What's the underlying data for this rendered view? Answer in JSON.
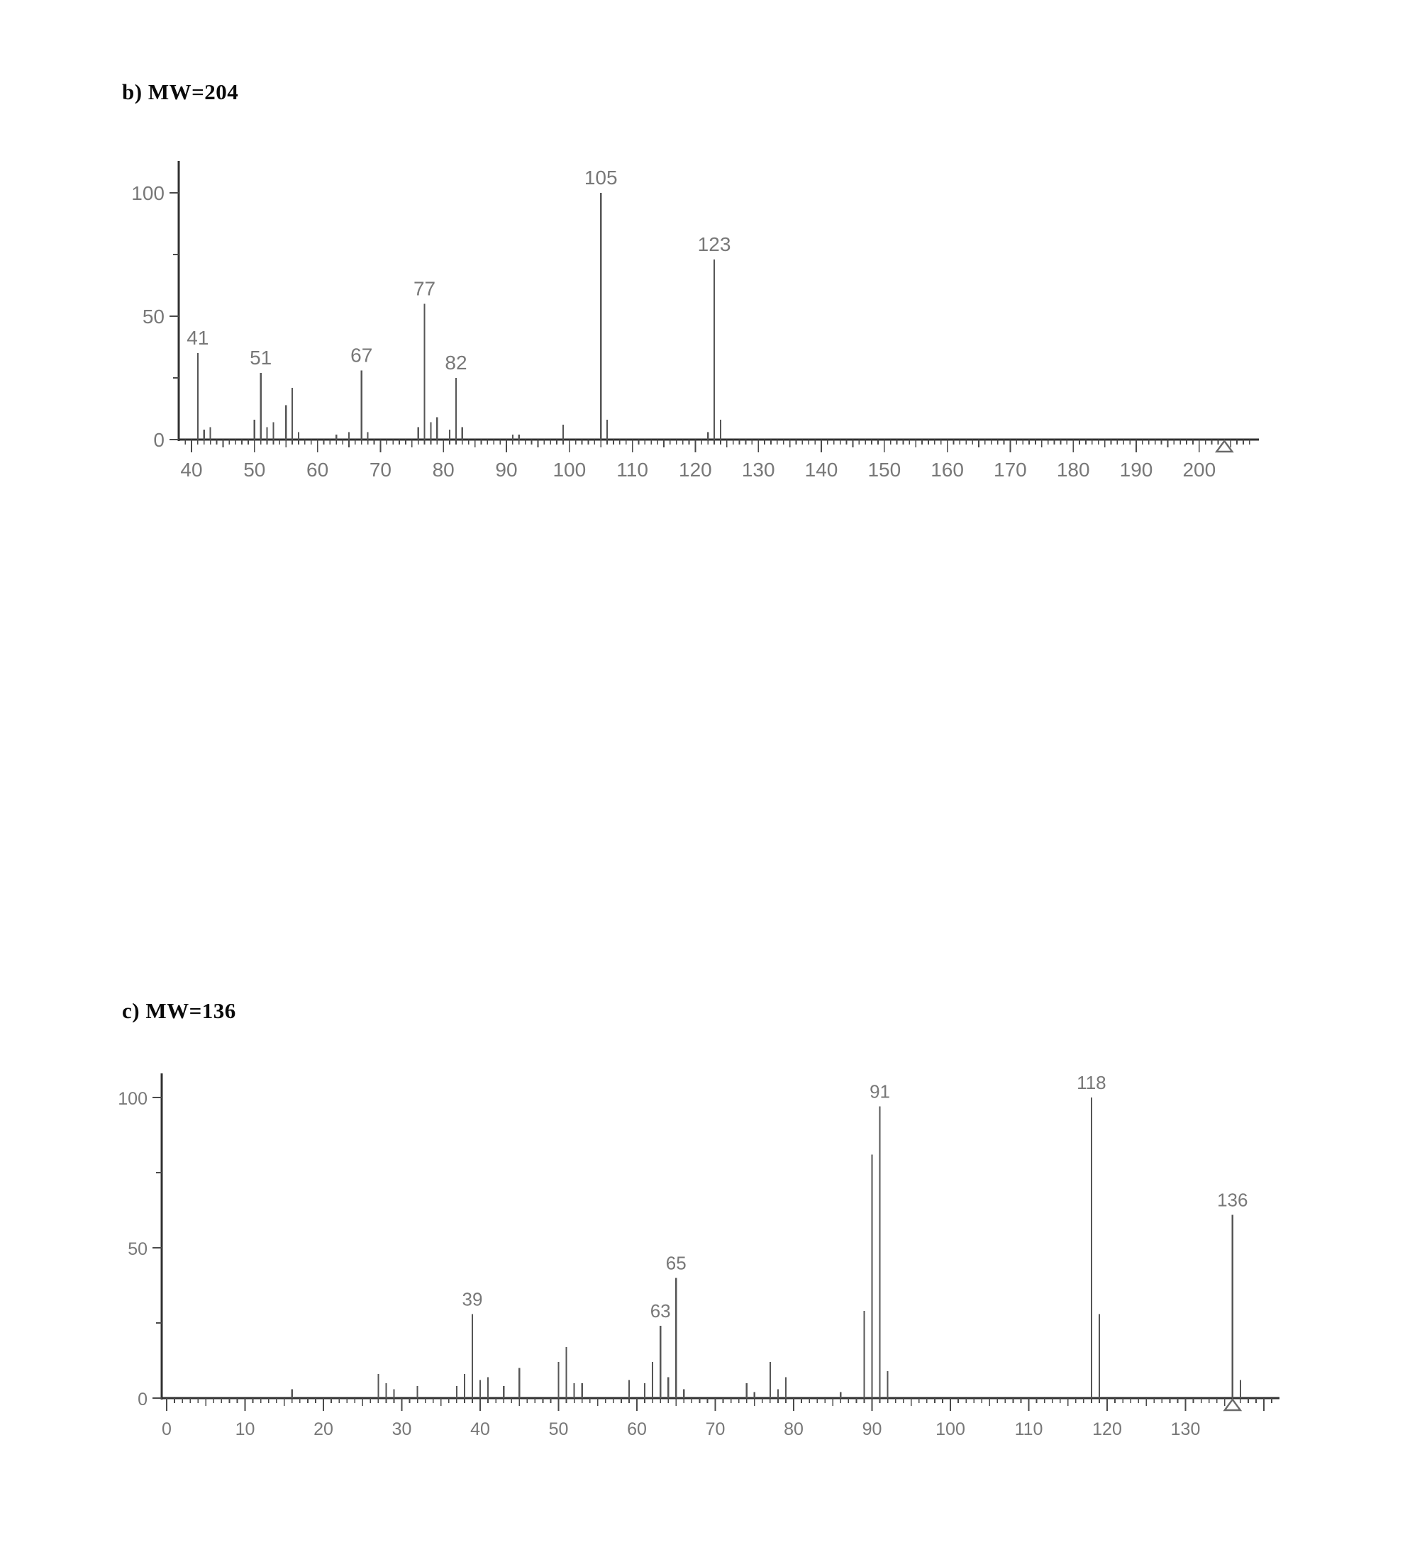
{
  "page": {
    "background": "#ffffff"
  },
  "charts_meta": {
    "label_color": "#787878",
    "axis_color": "#303030",
    "peak_color": "#565656",
    "title_color": "#0a0a0a"
  },
  "chart_data": [
    {
      "id": "b",
      "type": "bar",
      "title": "b) MW=204",
      "subtitle": "",
      "xlabel": "",
      "ylabel": "",
      "mw": 204,
      "xlim": [
        38,
        209.5
      ],
      "ylim": [
        0,
        113
      ],
      "x_label_range": [
        40,
        200
      ],
      "x_tick_step_major": 10,
      "x_tick_step_minor": 1,
      "x_tick_range": [
        39,
        208
      ],
      "y_major_ticks": [
        0,
        50,
        100
      ],
      "y_minor_ticks": [
        25,
        75
      ],
      "grid": "off",
      "legend": "none",
      "molecular_ion_marker_mz": 204,
      "labeled_peaks": [
        41,
        51,
        67,
        77,
        82,
        105,
        123
      ],
      "peaks": [
        [
          41,
          35
        ],
        [
          42,
          4
        ],
        [
          43,
          5
        ],
        [
          50,
          8
        ],
        [
          51,
          27
        ],
        [
          52,
          5
        ],
        [
          53,
          7
        ],
        [
          55,
          14
        ],
        [
          56,
          21
        ],
        [
          57,
          3
        ],
        [
          63,
          2
        ],
        [
          65,
          3
        ],
        [
          67,
          28
        ],
        [
          68,
          3
        ],
        [
          76,
          5
        ],
        [
          77,
          55
        ],
        [
          78,
          7
        ],
        [
          79,
          9
        ],
        [
          81,
          4
        ],
        [
          82,
          25
        ],
        [
          83,
          5
        ],
        [
          91,
          2
        ],
        [
          92,
          2
        ],
        [
          99,
          6
        ],
        [
          105,
          100
        ],
        [
          106,
          8
        ],
        [
          122,
          3
        ],
        [
          123,
          73
        ],
        [
          124,
          8
        ]
      ]
    },
    {
      "id": "c",
      "type": "bar",
      "title": "c) MW=136",
      "subtitle": "",
      "xlabel": "",
      "ylabel": "",
      "mw": 136,
      "xlim": [
        0,
        142
      ],
      "ylim": [
        0,
        108
      ],
      "x_label_range": [
        0,
        130
      ],
      "x_tick_step_major": 10,
      "x_tick_step_minor": 1,
      "x_tick_range": [
        0,
        141
      ],
      "y_major_ticks": [
        0,
        50,
        100
      ],
      "y_minor_ticks": [
        25,
        75
      ],
      "grid": "off",
      "legend": "none",
      "molecular_ion_marker_mz": 136,
      "labeled_peaks": [
        39,
        63,
        65,
        91,
        118,
        136
      ],
      "peaks": [
        [
          16,
          3
        ],
        [
          27,
          8
        ],
        [
          28,
          5
        ],
        [
          29,
          3
        ],
        [
          32,
          4
        ],
        [
          37,
          4
        ],
        [
          38,
          8
        ],
        [
          39,
          28
        ],
        [
          40,
          6
        ],
        [
          41,
          7
        ],
        [
          43,
          4
        ],
        [
          45,
          10
        ],
        [
          50,
          12
        ],
        [
          51,
          17
        ],
        [
          52,
          5
        ],
        [
          53,
          5
        ],
        [
          59,
          6
        ],
        [
          61,
          5
        ],
        [
          62,
          12
        ],
        [
          63,
          24
        ],
        [
          64,
          7
        ],
        [
          65,
          40
        ],
        [
          66,
          3
        ],
        [
          74,
          5
        ],
        [
          75,
          2
        ],
        [
          77,
          12
        ],
        [
          78,
          3
        ],
        [
          79,
          7
        ],
        [
          86,
          2
        ],
        [
          89,
          29
        ],
        [
          90,
          81
        ],
        [
          91,
          97
        ],
        [
          92,
          9
        ],
        [
          118,
          100
        ],
        [
          119,
          28
        ],
        [
          136,
          61
        ],
        [
          137,
          6
        ]
      ]
    }
  ]
}
